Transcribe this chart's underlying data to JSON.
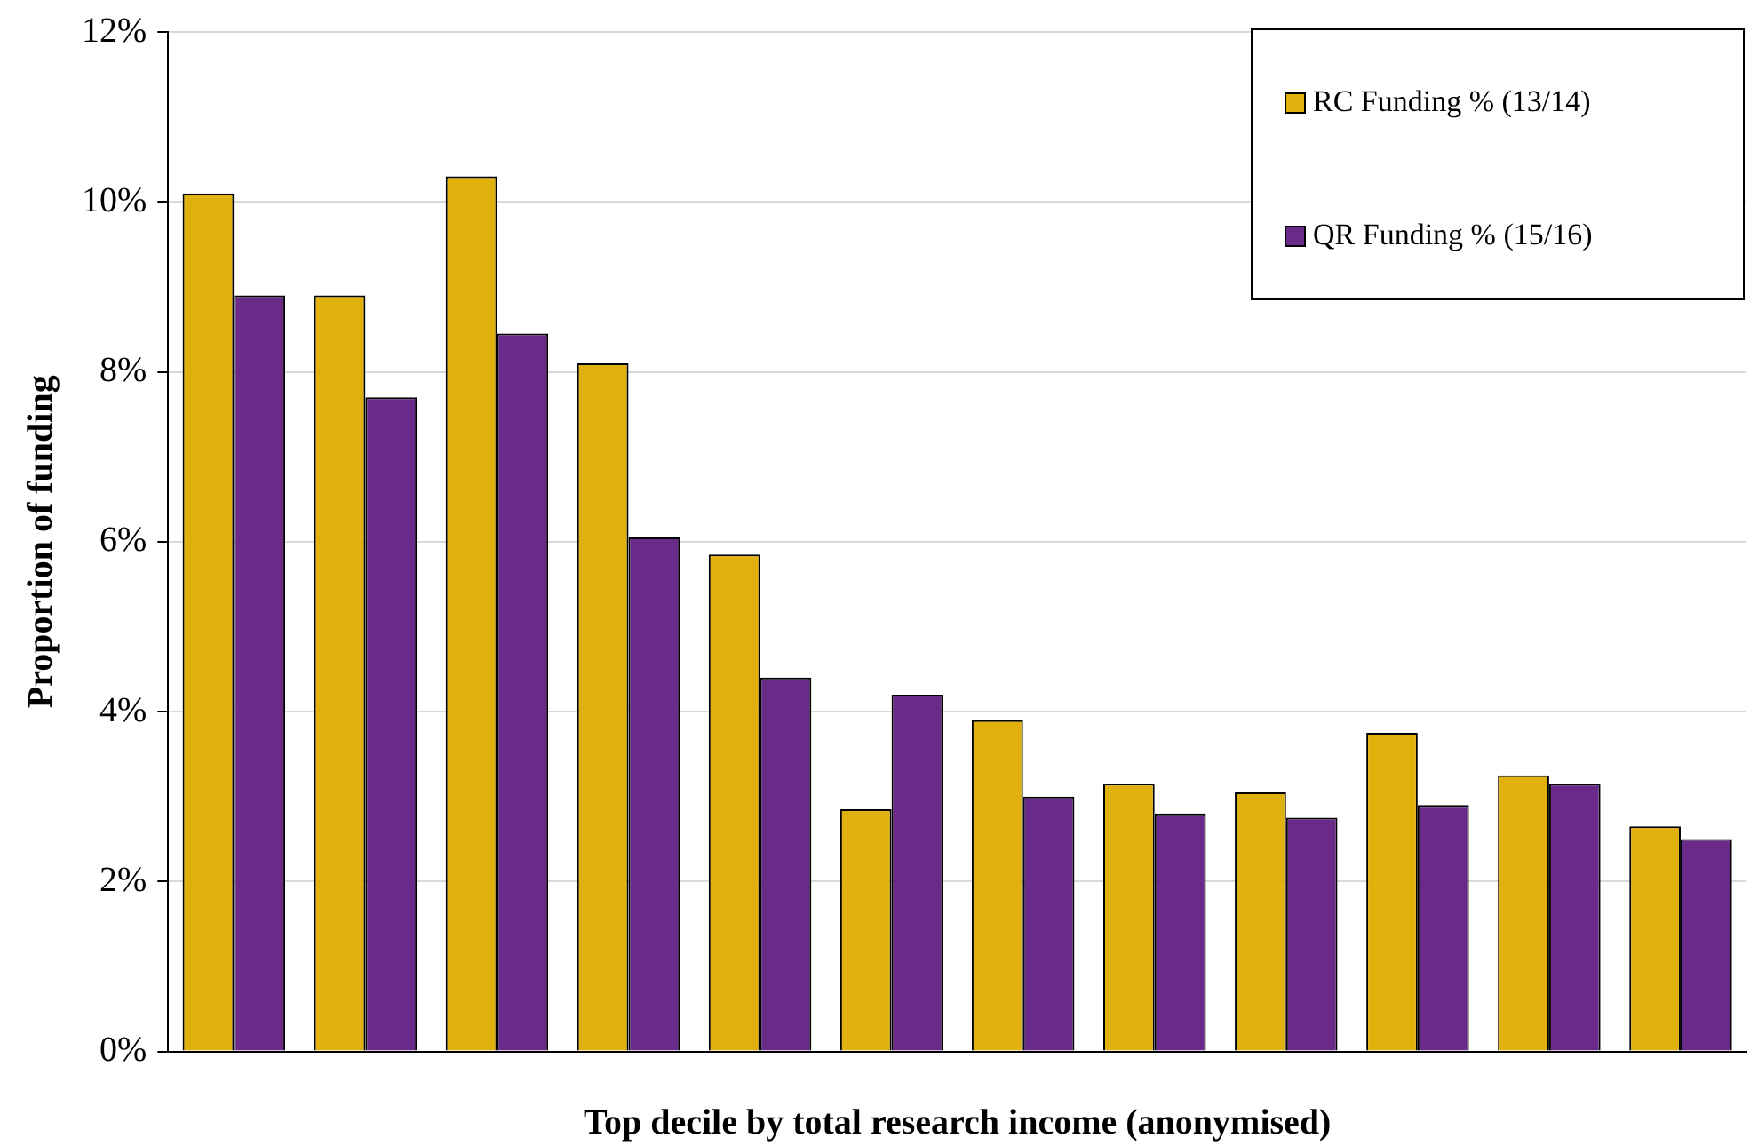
{
  "chart_data": {
    "type": "bar",
    "xlabel": "Top decile by total research income (anonymised)",
    "ylabel": "Proportion of funding",
    "categories": [
      null,
      null,
      null,
      null,
      null,
      null,
      null,
      null,
      null,
      null,
      null,
      null
    ],
    "series": [
      {
        "name": "RC Funding % (13/14)",
        "color": "#e0b10c",
        "values": [
          10.1,
          8.9,
          10.3,
          8.1,
          5.85,
          2.85,
          3.9,
          3.15,
          3.05,
          3.75,
          3.25,
          2.65
        ]
      },
      {
        "name": "QR Funding % (15/16)",
        "color": "#6a2a8a",
        "values": [
          8.9,
          7.7,
          8.45,
          6.05,
          4.4,
          4.2,
          3.0,
          2.8,
          2.75,
          2.9,
          3.15,
          2.5
        ]
      }
    ],
    "ylim": [
      0,
      12
    ],
    "yticks": [
      {
        "value": 0,
        "label": "0%"
      },
      {
        "value": 2,
        "label": "2%"
      },
      {
        "value": 4,
        "label": "4%"
      },
      {
        "value": 6,
        "label": "6%"
      },
      {
        "value": 8,
        "label": "8%"
      },
      {
        "value": 10,
        "label": "10%"
      },
      {
        "value": 12,
        "label": "12%"
      }
    ],
    "grid": "y",
    "legend": "top right"
  }
}
